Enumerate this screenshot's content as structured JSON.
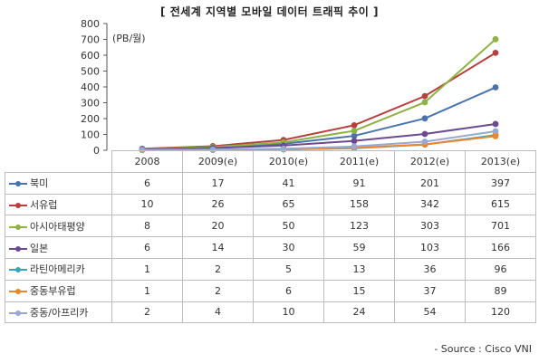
{
  "title": "[ 전세계 지역별 모바일 데이터 트래픽 추이 ]",
  "unit": "(PB/월)",
  "source": "- Source : Cisco VNI",
  "chart_data": {
    "type": "line",
    "categories": [
      "2008",
      "2009(e)",
      "2010(e)",
      "2011(e)",
      "2012(e)",
      "2013(e)"
    ],
    "ylim": [
      0,
      800
    ],
    "yticks": [
      0,
      100,
      200,
      300,
      400,
      500,
      600,
      700,
      800
    ],
    "grid": false,
    "series": [
      {
        "name": "북미",
        "color": "#4a73ad",
        "values": [
          6,
          17,
          41,
          91,
          201,
          397
        ]
      },
      {
        "name": "서유럽",
        "color": "#b5403d",
        "values": [
          10,
          26,
          65,
          158,
          342,
          615
        ]
      },
      {
        "name": "아시아태평양",
        "color": "#8fb245",
        "values": [
          8,
          20,
          50,
          123,
          303,
          701
        ]
      },
      {
        "name": "일본",
        "color": "#6c4a8f",
        "values": [
          6,
          14,
          30,
          59,
          103,
          166
        ]
      },
      {
        "name": "라틴아메리카",
        "color": "#3aa3bd",
        "values": [
          1,
          2,
          5,
          13,
          36,
          96
        ]
      },
      {
        "name": "중동부유럽",
        "color": "#e9882f",
        "values": [
          1,
          2,
          6,
          15,
          37,
          89
        ]
      },
      {
        "name": "중동/아프리카",
        "color": "#99a8d2",
        "values": [
          2,
          4,
          10,
          24,
          54,
          120
        ]
      }
    ]
  }
}
